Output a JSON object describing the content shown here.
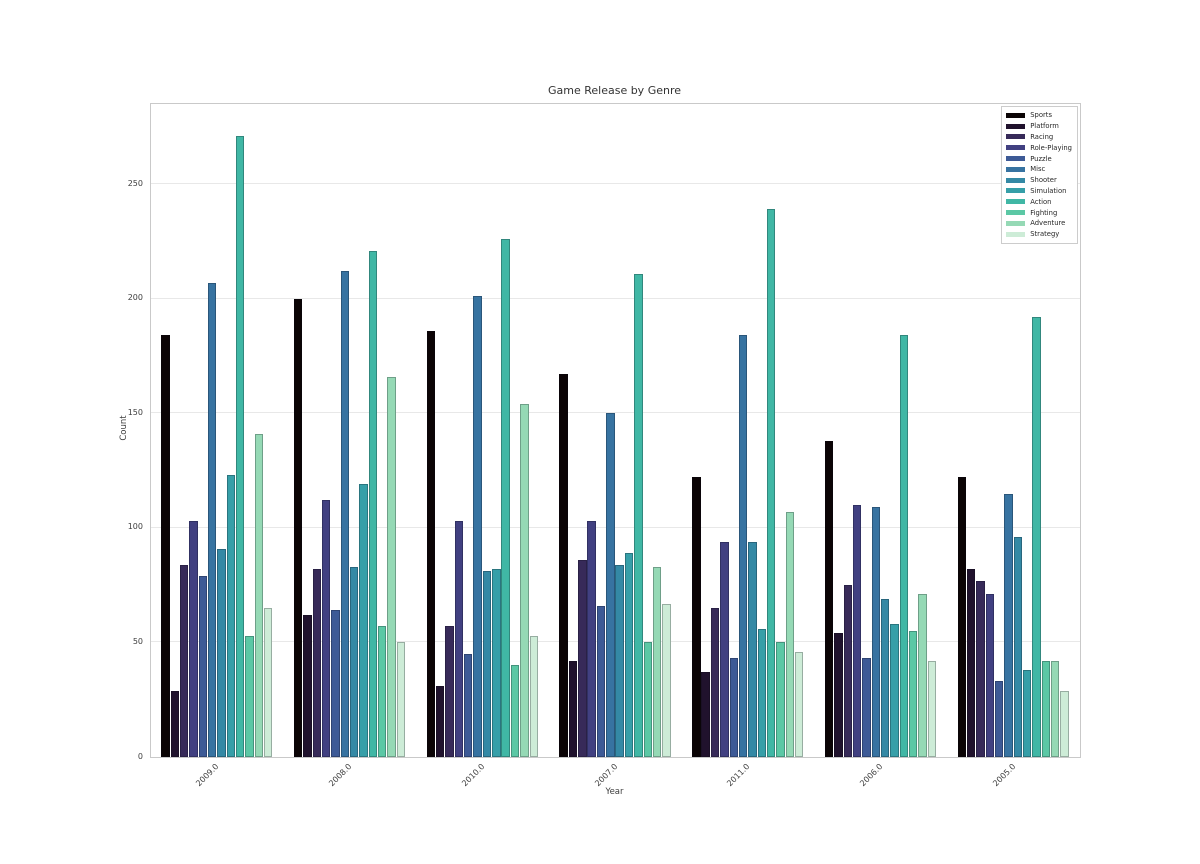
{
  "title": "Game Release by Genre",
  "chart_data": {
    "type": "bar",
    "title": "Game Release by Genre",
    "xlabel": "Year",
    "ylabel": "Count",
    "categories": [
      "2009.0",
      "2008.0",
      "2010.0",
      "2007.0",
      "2011.0",
      "2006.0",
      "2005.0"
    ],
    "series": [
      {
        "name": "Sports",
        "color": "#0b0405",
        "values": [
          184,
          200,
          186,
          167,
          122,
          138,
          122
        ]
      },
      {
        "name": "Platform",
        "color": "#20122d",
        "values": [
          29,
          62,
          31,
          42,
          37,
          54,
          82
        ]
      },
      {
        "name": "Racing",
        "color": "#372a59",
        "values": [
          84,
          82,
          57,
          86,
          65,
          75,
          77
        ]
      },
      {
        "name": "Role-Playing",
        "color": "#414081",
        "values": [
          103,
          112,
          103,
          103,
          94,
          110,
          71
        ]
      },
      {
        "name": "Puzzle",
        "color": "#3d5a96",
        "values": [
          79,
          64,
          45,
          66,
          43,
          43,
          33
        ]
      },
      {
        "name": "Misc",
        "color": "#3773a1",
        "values": [
          207,
          212,
          201,
          150,
          184,
          109,
          115
        ]
      },
      {
        "name": "Shooter",
        "color": "#3489a5",
        "values": [
          91,
          83,
          81,
          84,
          94,
          69,
          96
        ]
      },
      {
        "name": "Simulation",
        "color": "#369fa8",
        "values": [
          123,
          119,
          82,
          89,
          56,
          58,
          38
        ]
      },
      {
        "name": "Action",
        "color": "#40b7a5",
        "values": [
          271,
          221,
          226,
          211,
          239,
          184,
          192
        ]
      },
      {
        "name": "Fighting",
        "color": "#5bc8a5",
        "values": [
          53,
          57,
          40,
          50,
          50,
          55,
          42
        ]
      },
      {
        "name": "Adventure",
        "color": "#95d9b5",
        "values": [
          141,
          166,
          154,
          83,
          107,
          71,
          42
        ]
      },
      {
        "name": "Strategy",
        "color": "#cdecd7",
        "values": [
          65,
          50,
          53,
          67,
          46,
          42,
          29
        ]
      }
    ],
    "ylim": [
      0,
      285
    ],
    "yticks": [
      0,
      50,
      100,
      150,
      200,
      250
    ],
    "grid": true,
    "legend_position": "upper right"
  },
  "colors": {
    "background": "#ffffff",
    "gridline": "#e8e8e8",
    "spine": "#c9c9c9",
    "text": "#3d3d3d"
  }
}
